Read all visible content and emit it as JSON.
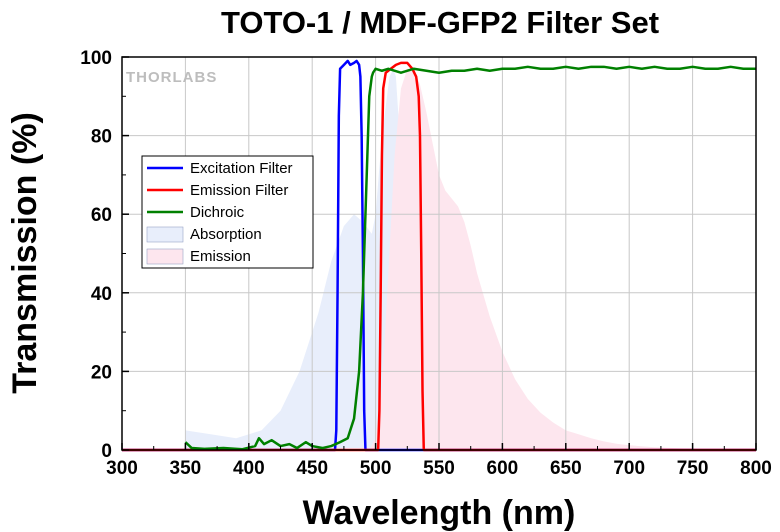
{
  "chart_data": {
    "type": "line",
    "title": "TOTO-1 / MDF-GFP2 Filter Set",
    "xlabel": "Wavelength (nm)",
    "ylabel": "Transmission (%)",
    "xlim": [
      300,
      800
    ],
    "ylim": [
      0,
      100
    ],
    "xticks": [
      300,
      350,
      400,
      450,
      500,
      550,
      600,
      650,
      700,
      750,
      800
    ],
    "yticks": [
      0,
      20,
      40,
      60,
      80,
      100
    ],
    "grid": true,
    "legend_position": "left",
    "watermark": "THORLABS",
    "series": [
      {
        "name": "Excitation Filter",
        "kind": "line",
        "color": "#0000ff",
        "x": [
          300,
          468,
          469,
          470,
          471,
          472,
          475,
          478,
          480,
          483,
          485,
          487,
          488,
          489,
          490,
          491,
          492,
          800
        ],
        "y": [
          0,
          0,
          5,
          40,
          85,
          97,
          98,
          99,
          98,
          98.5,
          99,
          98,
          95,
          80,
          50,
          10,
          0,
          0
        ]
      },
      {
        "name": "Emission Filter",
        "kind": "line",
        "color": "#ff0000",
        "x": [
          300,
          502,
          503,
          504,
          505,
          506,
          508,
          512,
          516,
          520,
          525,
          529,
          532,
          534,
          535,
          536,
          537,
          538,
          800
        ],
        "y": [
          0,
          0,
          10,
          40,
          75,
          92,
          96,
          97,
          98,
          98.5,
          98.5,
          97,
          95,
          90,
          80,
          50,
          15,
          0,
          0
        ]
      },
      {
        "name": "Dichroic",
        "kind": "line",
        "color": "#008000",
        "x": [
          350,
          355,
          365,
          380,
          395,
          405,
          408,
          412,
          418,
          425,
          432,
          438,
          445,
          450,
          458,
          465,
          472,
          478,
          483,
          487,
          490,
          493,
          495,
          497,
          498,
          499,
          500,
          505,
          510,
          520,
          530,
          540,
          550,
          560,
          570,
          580,
          590,
          600,
          610,
          620,
          630,
          640,
          650,
          660,
          670,
          680,
          690,
          700,
          710,
          720,
          730,
          740,
          750,
          760,
          770,
          780,
          790,
          800
        ],
        "y": [
          2,
          0.5,
          0.3,
          0.5,
          0.2,
          1,
          3,
          1.5,
          2.5,
          1,
          1.5,
          0.5,
          2,
          1,
          0.5,
          1,
          2,
          3,
          8,
          20,
          40,
          70,
          90,
          95,
          96,
          96.5,
          97,
          96.5,
          97,
          96,
          97,
          96.5,
          96,
          96.5,
          96.5,
          97,
          96.5,
          97,
          97,
          97.5,
          97,
          97,
          97.5,
          97,
          97.5,
          97.5,
          97,
          97.5,
          97,
          97.5,
          97,
          97,
          97.5,
          97,
          97,
          97.5,
          97,
          97
        ]
      },
      {
        "name": "Absorption",
        "kind": "area",
        "color": "#e8eefb",
        "x": [
          350,
          370,
          390,
          410,
          425,
          440,
          455,
          465,
          475,
          483,
          490,
          497,
          500,
          503,
          507,
          511,
          514,
          516,
          518,
          520,
          522,
          525,
          530,
          540
        ],
        "y": [
          5,
          4,
          3,
          5,
          10,
          20,
          35,
          48,
          57,
          60,
          58,
          55,
          60,
          72,
          85,
          95,
          97,
          95,
          85,
          60,
          30,
          10,
          2,
          0
        ]
      },
      {
        "name": "Emission",
        "kind": "area",
        "color": "#fde6ee",
        "x": [
          495,
          500,
          505,
          510,
          515,
          520,
          525,
          530,
          535,
          540,
          545,
          550,
          555,
          560,
          565,
          570,
          575,
          580,
          590,
          600,
          610,
          620,
          630,
          640,
          650,
          660,
          670,
          680,
          690,
          700,
          720,
          740,
          760,
          780,
          800
        ],
        "y": [
          0,
          3,
          15,
          45,
          75,
          92,
          97,
          97,
          93,
          86,
          78,
          70,
          66,
          64,
          62,
          58,
          52,
          45,
          34,
          25,
          18,
          13,
          9.5,
          7,
          5,
          4,
          3,
          2.2,
          1.6,
          1.2,
          0.7,
          0.4,
          0.2,
          0.1,
          0
        ]
      }
    ]
  }
}
